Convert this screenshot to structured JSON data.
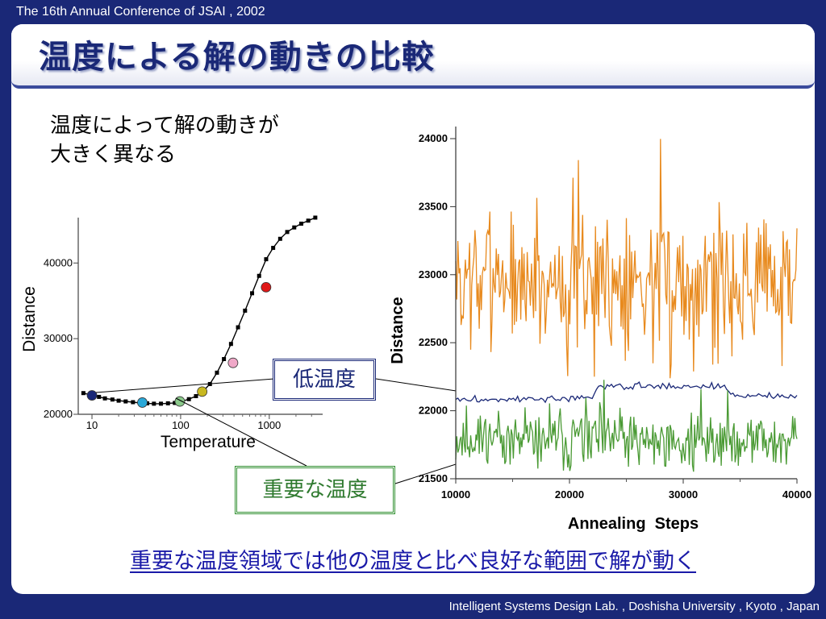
{
  "header": {
    "conference": "The 16th Annual Conference of JSAI , 2002",
    "title": "温度による解の動きの比較"
  },
  "intro_lines": [
    "温度によって解の動きが",
    "大きく異なる"
  ],
  "labels": {
    "low_temp": "低温度",
    "important_temp": "重要な温度"
  },
  "footer_note": "重要な温度領域では他の温度と比べ良好な範囲で解が動く",
  "footer": "Intelligent Systems Design Lab. , Doshisha University , Kyoto , Japan",
  "colors": {
    "background": "#1a2877",
    "orange_series": "#e88a1e",
    "navy_series": "#1a2877",
    "green_series": "#4a9a34"
  },
  "chart_data": [
    {
      "type": "line",
      "xlabel": "Temperature",
      "ylabel": "Distance",
      "x_scale": "log",
      "xlim": [
        7,
        4000
      ],
      "ylim": [
        20000,
        46000
      ],
      "x_ticks": [
        10,
        100,
        1000
      ],
      "x_tick_labels": [
        "10",
        "100",
        "1000"
      ],
      "y_ticks": [
        20000,
        30000,
        40000
      ],
      "y_tick_labels": [
        "20000",
        "30000",
        "40000"
      ],
      "x": [
        8,
        10,
        12,
        14,
        17,
        20,
        24,
        29,
        35,
        42,
        50,
        60,
        72,
        86,
        103,
        124,
        149,
        178,
        214,
        257,
        308,
        370,
        444,
        533,
        640,
        768,
        922,
        1106,
        1327,
        1593,
        1912,
        2294,
        2753,
        3304
      ],
      "y": [
        22800,
        22500,
        22300,
        22100,
        21950,
        21800,
        21700,
        21600,
        21500,
        21450,
        21400,
        21400,
        21450,
        21500,
        21700,
        22000,
        22400,
        23000,
        24000,
        25500,
        27300,
        29300,
        31500,
        33700,
        36000,
        38300,
        40500,
        42000,
        43200,
        44100,
        44700,
        45200,
        45600,
        46000
      ],
      "highlighted_points": [
        {
          "x": 10,
          "y": 22500,
          "color": "#1a2877"
        },
        {
          "x": 37,
          "y": 21550,
          "color": "#2aa8d8"
        },
        {
          "x": 98,
          "y": 21700,
          "color": "#8ac98a"
        },
        {
          "x": 175,
          "y": 23000,
          "color": "#c8b820"
        },
        {
          "x": 390,
          "y": 26800,
          "color": "#f0a8c8"
        },
        {
          "x": 920,
          "y": 36800,
          "color": "#e01818"
        }
      ]
    },
    {
      "type": "line",
      "xlabel": "Annealing  Steps",
      "ylabel": "Distance",
      "xlim": [
        10000,
        40000
      ],
      "ylim": [
        21500,
        24000
      ],
      "x_ticks": [
        10000,
        20000,
        30000,
        40000
      ],
      "x_tick_labels": [
        "10000",
        "20000",
        "30000",
        "40000"
      ],
      "y_ticks": [
        21500,
        22000,
        22500,
        23000,
        23500,
        24000
      ],
      "y_tick_labels": [
        "21500",
        "22000",
        "22500",
        "23000",
        "23500",
        "24000"
      ],
      "series": [
        {
          "color": "#e88a1e",
          "baseline": 22950,
          "amplitude": 850,
          "seed": 7,
          "x_start": 10000,
          "x_end": 40000,
          "points": 320
        },
        {
          "color": "#1a2877",
          "seed": 3,
          "x_start": 10000,
          "x_end": 40000,
          "points": 160,
          "segments": [
            [
              10000,
              22080
            ],
            [
              22000,
              22090
            ],
            [
              22500,
              22180
            ],
            [
              33500,
              22180
            ],
            [
              34500,
              22110
            ],
            [
              40000,
              22110
            ]
          ],
          "amplitude": 35
        },
        {
          "color": "#4a9a34",
          "baseline": 21780,
          "amplitude": 330,
          "seed": 11,
          "x_start": 10000,
          "x_end": 40000,
          "points": 320
        }
      ]
    }
  ]
}
